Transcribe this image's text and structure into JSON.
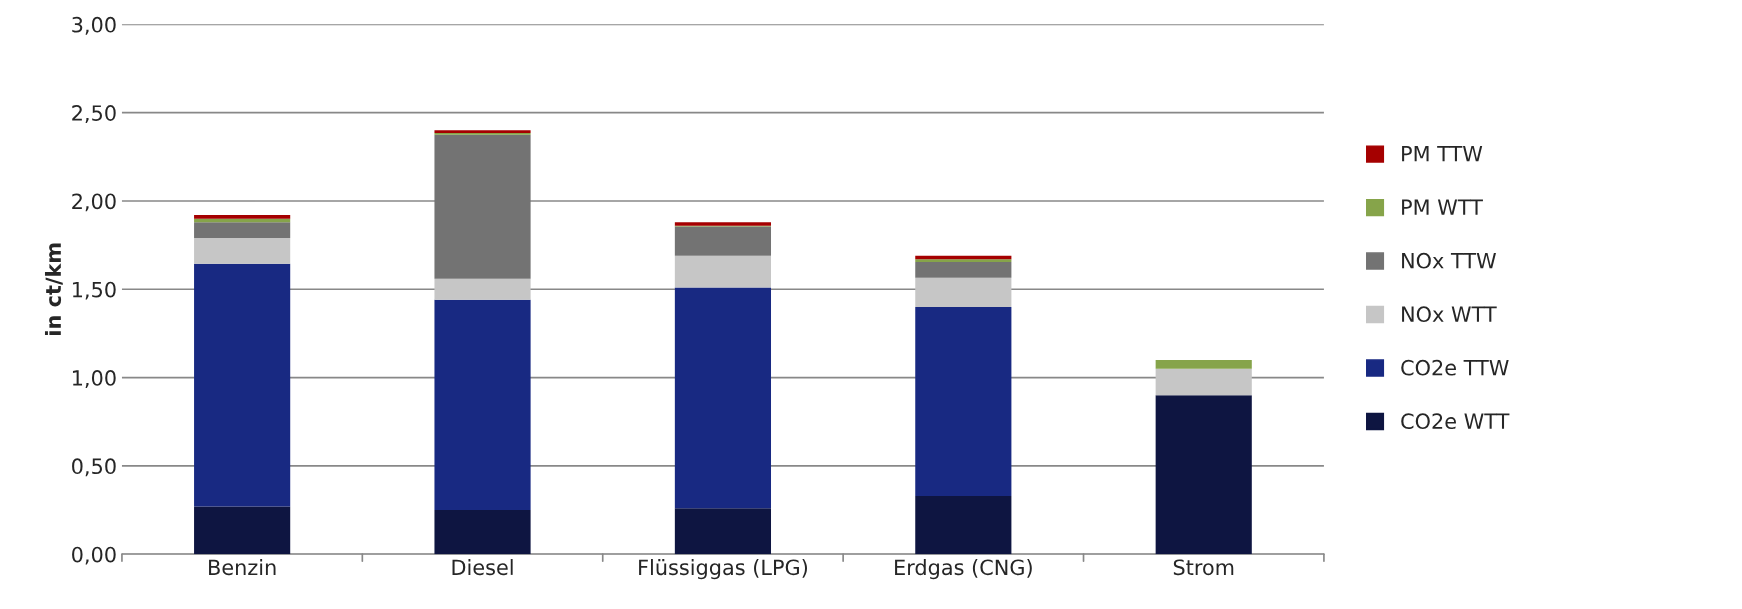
{
  "chart_data": {
    "type": "bar",
    "stacked": true,
    "ylabel": "in ct/km",
    "categories": [
      "Benzin",
      "Diesel",
      "Flüssiggas (LPG)",
      "Erdgas (CNG)",
      "Strom"
    ],
    "series": [
      {
        "name": "CO2e WTT",
        "color": "#0e1541",
        "values": [
          0.27,
          0.25,
          0.26,
          0.33,
          0.9
        ]
      },
      {
        "name": "CO2e TTW",
        "color": "#182982",
        "values": [
          1.375,
          1.19,
          1.25,
          1.07,
          null
        ]
      },
      {
        "name": "NOx WTT",
        "color": "#c6c6c6",
        "values": [
          0.145,
          0.12,
          0.18,
          0.165,
          0.15
        ]
      },
      {
        "name": "NOx TTW",
        "color": "#737373",
        "values": [
          0.09,
          0.815,
          0.165,
          0.09,
          null
        ]
      },
      {
        "name": "PM WTT",
        "color": "#86a44a",
        "values": [
          0.02,
          0.01,
          0.005,
          0.015,
          0.05
        ]
      },
      {
        "name": "PM TTW",
        "color": "#a50000",
        "values": [
          0.02,
          0.015,
          0.02,
          0.02,
          null
        ]
      }
    ],
    "ylim": [
      0,
      3
    ],
    "yticks": [
      {
        "value": 0,
        "label": "0,00"
      },
      {
        "value": 0.5,
        "label": "0,50"
      },
      {
        "value": 1,
        "label": "1,00"
      },
      {
        "value": 1.5,
        "label": "1,50"
      },
      {
        "value": 2,
        "label": "2,00"
      },
      {
        "value": 2.5,
        "label": "2,50"
      },
      {
        "value": 3,
        "label": "3,00"
      }
    ],
    "grid": "y",
    "legend": "right"
  }
}
